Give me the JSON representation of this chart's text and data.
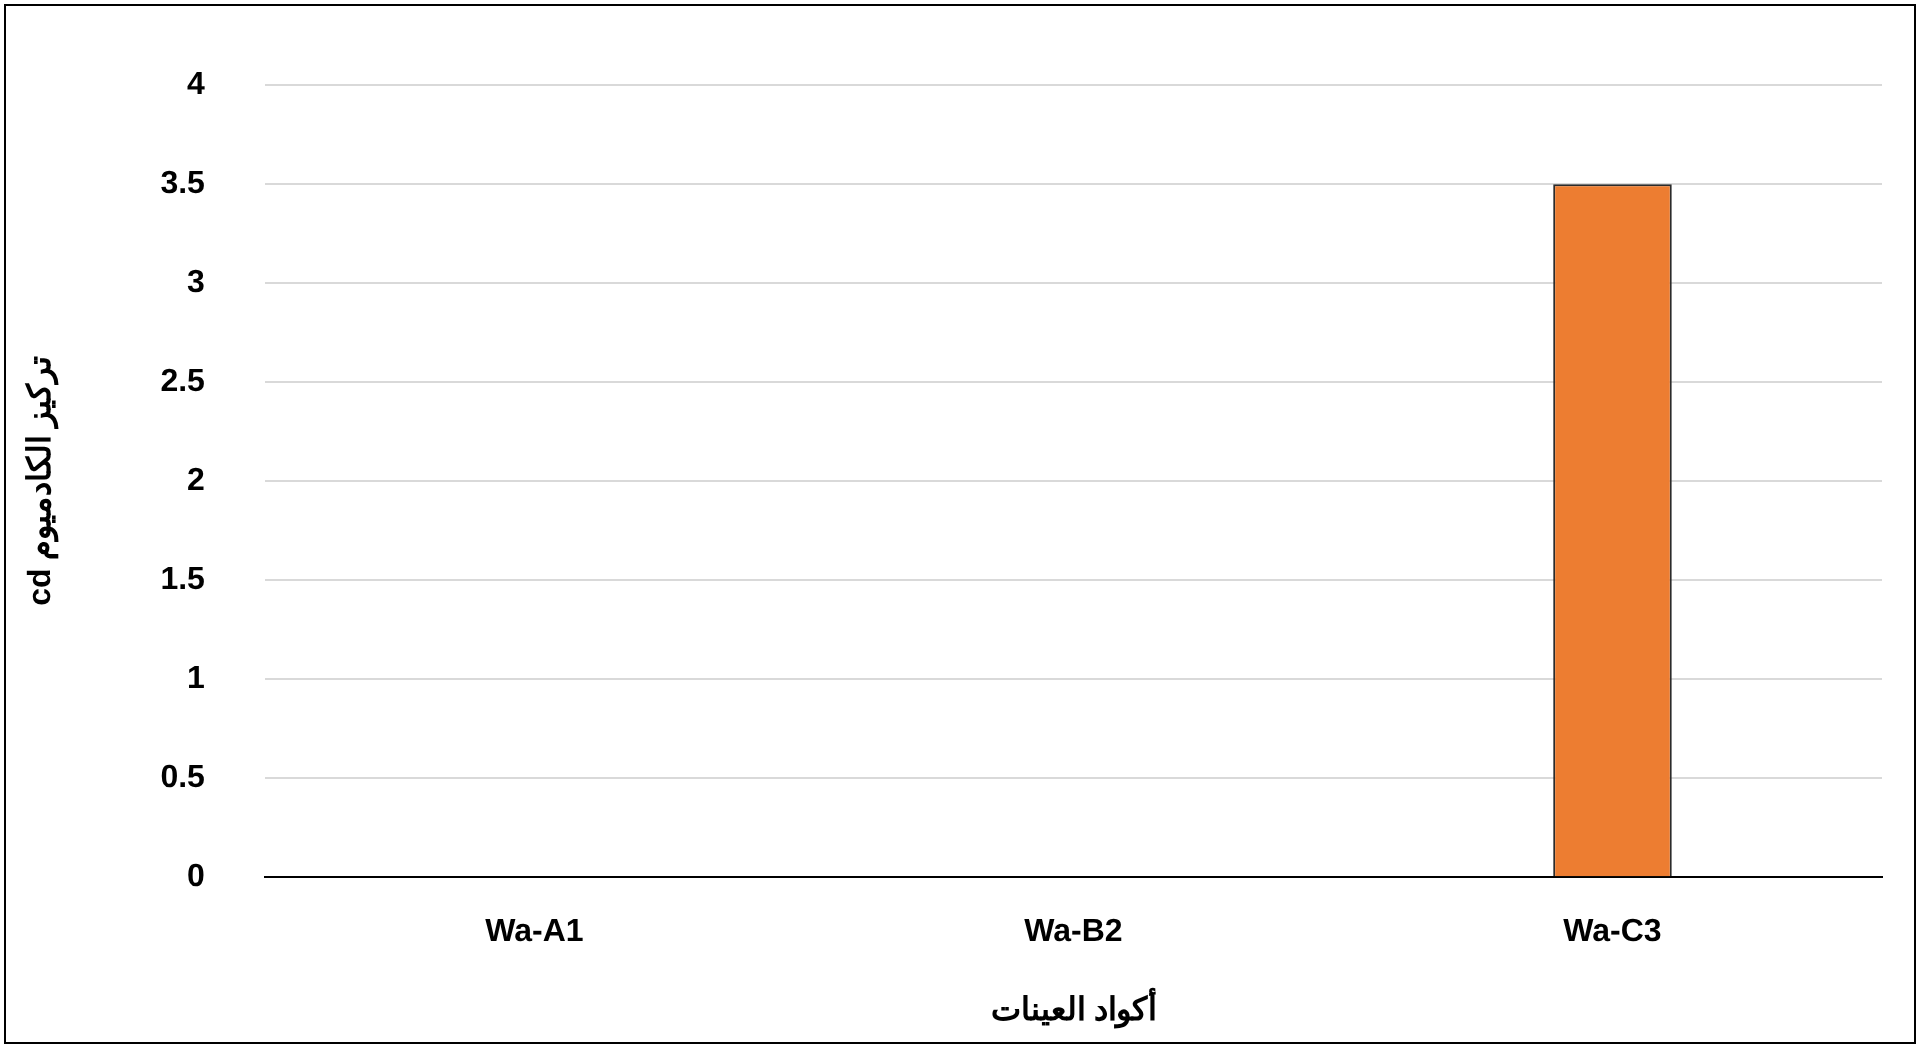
{
  "chart_data": {
    "type": "bar",
    "xlabel": "أكواد العينات",
    "ylabel": "تركيز الكادميوم cd",
    "categories": [
      "Wa-A1",
      "Wa-B2",
      "Wa-C3"
    ],
    "values": [
      0,
      0,
      3.5
    ],
    "color": "#ed7d31",
    "ylim": [
      0,
      4
    ],
    "yticks": [
      0,
      0.5,
      1,
      1.5,
      2,
      2.5,
      3,
      3.5,
      4
    ],
    "grid": "y",
    "legend": false
  }
}
